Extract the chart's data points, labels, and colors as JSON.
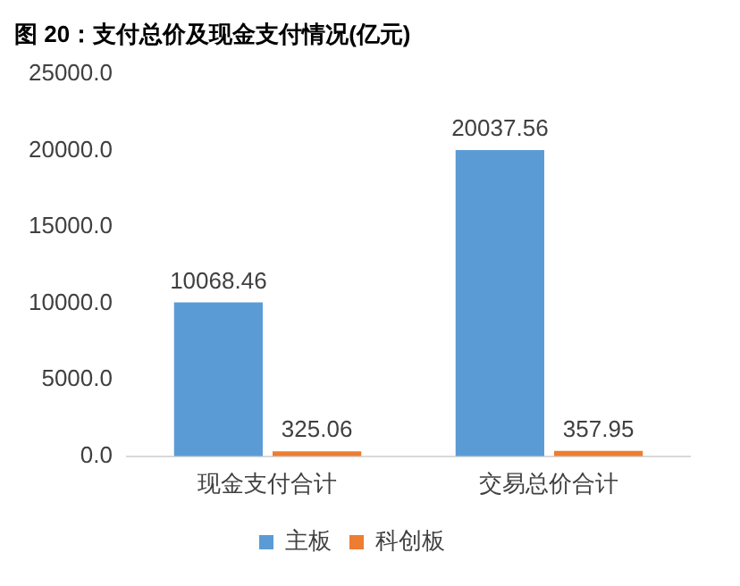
{
  "chart_data": {
    "type": "bar",
    "title": "图 20：支付总价及现金支付情况(亿元)",
    "categories": [
      "现金支付合计",
      "交易总价合计"
    ],
    "series": [
      {
        "name": "主板",
        "color": "#5b9bd5",
        "values": [
          10068.46,
          20037.56
        ]
      },
      {
        "name": "科创板",
        "color": "#ed7d31",
        "values": [
          325.06,
          357.95
        ]
      }
    ],
    "ylim": [
      0,
      25000
    ],
    "yticks": [
      {
        "value": 0,
        "label": "0.0"
      },
      {
        "value": 5000,
        "label": "5000.0"
      },
      {
        "value": 10000,
        "label": "10000.0"
      },
      {
        "value": 15000,
        "label": "15000.0"
      },
      {
        "value": 20000,
        "label": "20000.0"
      },
      {
        "value": 25000,
        "label": "25000.0"
      }
    ],
    "grid": false,
    "legend": "bottom",
    "data_labels": true
  }
}
